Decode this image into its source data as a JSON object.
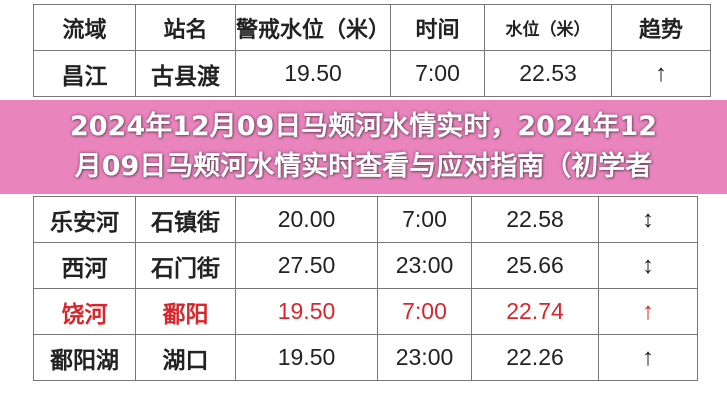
{
  "table": {
    "headers": [
      "流域",
      "站名",
      "警戒水位（米）",
      "时间",
      "水位（米）",
      "趋势"
    ],
    "rows": [
      {
        "basin": "昌江",
        "station": "古县渡",
        "warning": "19.50",
        "time": "7:00",
        "level": "22.53",
        "trend": "↑",
        "highlight": false
      },
      {
        "basin": "乐安河",
        "station": "石镇街",
        "warning": "20.00",
        "time": "7:00",
        "level": "22.58",
        "trend": "↕",
        "highlight": false
      },
      {
        "basin": "西河",
        "station": "石门街",
        "warning": "27.50",
        "time": "23:00",
        "level": "25.66",
        "trend": "↕",
        "highlight": false
      },
      {
        "basin": "饶河",
        "station": "鄱阳",
        "warning": "19.50",
        "time": "7:00",
        "level": "22.74",
        "trend": "↑",
        "highlight": true
      },
      {
        "basin": "鄱阳湖",
        "station": "湖口",
        "warning": "19.50",
        "time": "23:00",
        "level": "22.26",
        "trend": "↑",
        "highlight": false
      }
    ]
  },
  "banner": {
    "line1": "2024年12月09日马颊河水情实时，2024年12",
    "line2": "月09日马颊河水情实时查看与应对指南（初学者"
  },
  "colors": {
    "highlight": "#d8262b",
    "banner": "#e87db9"
  }
}
